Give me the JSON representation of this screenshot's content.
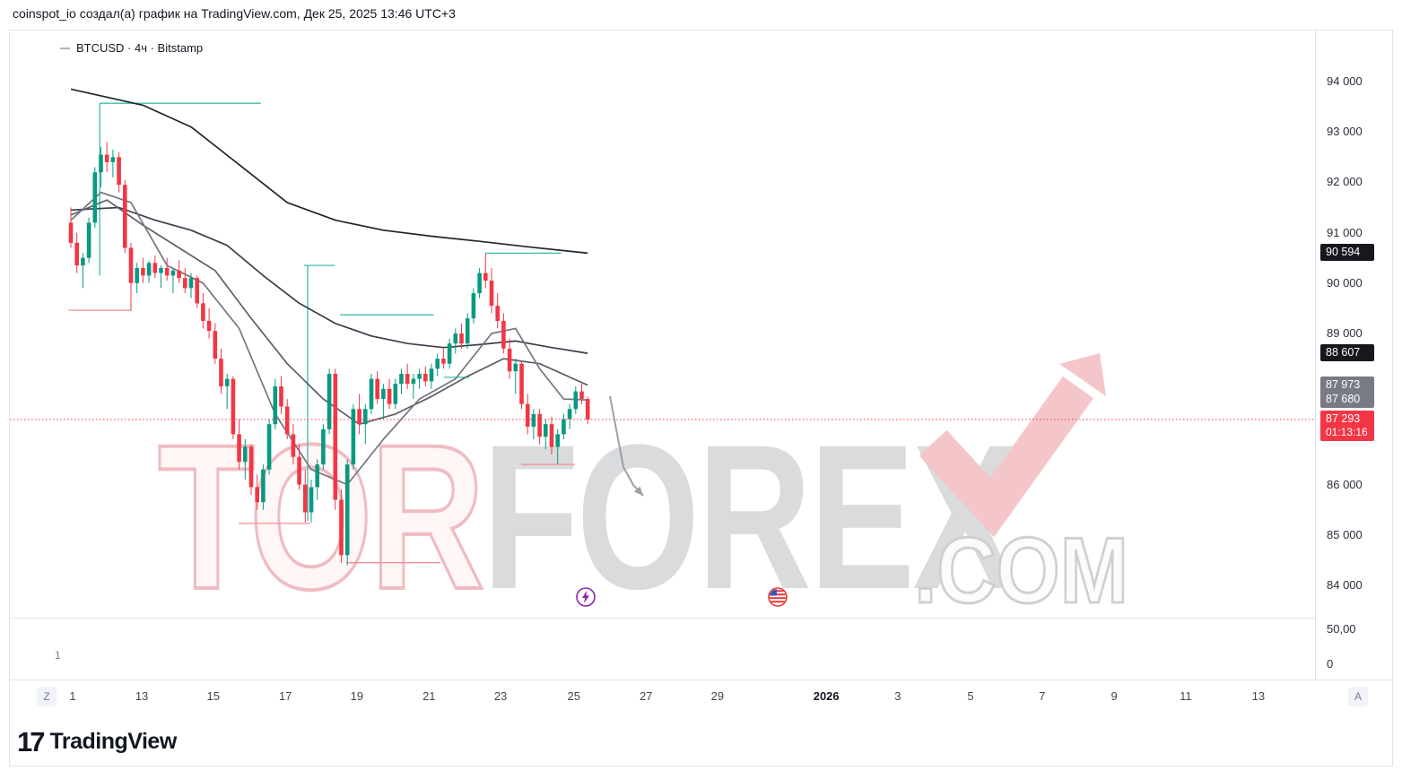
{
  "header": {
    "attribution": "coinspot_io создал(а) график на TradingView.com, Дек 25, 2025 13:46 UTC+3"
  },
  "legend": {
    "title": "BTCUSD · 4ч · Bitstamp"
  },
  "watermark": {
    "part1": "TOR",
    "part2": "FOREX",
    "part3": ".COM"
  },
  "logo": {
    "mark": "17",
    "text": "TradingView"
  },
  "time_axis": {
    "left_button": "Z",
    "right_button": "A"
  },
  "indicator_pane": {
    "labels": [
      "50,00",
      "0"
    ],
    "marker": "1"
  },
  "icons": {
    "lightning": "economic-event-lightning",
    "usflag": "us-economic-event-flag"
  },
  "chart_data": {
    "type": "candlestick",
    "symbol": "BTCUSD",
    "interval": "4ч",
    "exchange": "Bitstamp",
    "current_price": 87293,
    "countdown": "01:13:16",
    "colors": {
      "up": "#089981",
      "down": "#f23645",
      "level_teal": "#3bbcad",
      "level_pink": "#f58f97",
      "current_line": "#f23645",
      "arrow": "#9aa0a6"
    },
    "price_ticks": [
      {
        "text": "94 000",
        "price": 94000
      },
      {
        "text": "93 000",
        "price": 93000
      },
      {
        "text": "92 000",
        "price": 92000
      },
      {
        "text": "91 000",
        "price": 91000
      },
      {
        "text": "90 000",
        "price": 90000
      },
      {
        "text": "89 000",
        "price": 89000
      },
      {
        "text": "86 000",
        "price": 86000
      },
      {
        "text": "85 000",
        "price": 85000
      },
      {
        "text": "84 000",
        "price": 84000
      }
    ],
    "price_badges": [
      {
        "text": "90 594",
        "price": 90594,
        "style": "dark"
      },
      {
        "text": "88 607",
        "price": 88607,
        "style": "dark"
      },
      {
        "text": "87 973",
        "price": 87973,
        "style": "gray"
      },
      {
        "text": "87 680",
        "price": 87680,
        "style": "gray"
      },
      {
        "text": "87 293",
        "price": 87293,
        "style": "red",
        "countdown": "01:13:16"
      }
    ],
    "time_ticks": [
      {
        "label": "1",
        "i": 0.3
      },
      {
        "label": "13",
        "i": 11.8
      },
      {
        "label": "15",
        "i": 23.7
      },
      {
        "label": "17",
        "i": 35.7
      },
      {
        "label": "19",
        "i": 47.6
      },
      {
        "label": "21",
        "i": 59.6
      },
      {
        "label": "23",
        "i": 71.5
      },
      {
        "label": "25",
        "i": 83.7
      },
      {
        "label": "27",
        "i": 95.7
      },
      {
        "label": "29",
        "i": 107.6
      },
      {
        "label": "2026",
        "i": 125.7,
        "bold": true
      },
      {
        "label": "3",
        "i": 137.6
      },
      {
        "label": "5",
        "i": 149.7
      },
      {
        "label": "7",
        "i": 161.6
      },
      {
        "label": "9",
        "i": 173.6
      },
      {
        "label": "11",
        "i": 185.5
      },
      {
        "label": "13",
        "i": 197.6
      }
    ],
    "candles": [
      [
        91200,
        91500,
        90700,
        90800
      ],
      [
        90800,
        91000,
        90200,
        90350
      ],
      [
        90350,
        90600,
        89900,
        90500
      ],
      [
        90500,
        91300,
        90400,
        91200
      ],
      [
        91200,
        92300,
        91100,
        92200
      ],
      [
        92200,
        92700,
        91900,
        92550
      ],
      [
        92550,
        92800,
        92200,
        92400
      ],
      [
        92400,
        92650,
        92100,
        92500
      ],
      [
        92500,
        92600,
        91800,
        91950
      ],
      [
        91950,
        92050,
        90600,
        90700
      ],
      [
        90700,
        90800,
        89450,
        90000
      ],
      [
        90000,
        90400,
        89800,
        90300
      ],
      [
        90300,
        90500,
        90000,
        90150
      ],
      [
        90150,
        90450,
        90000,
        90400
      ],
      [
        90400,
        90550,
        90100,
        90200
      ],
      [
        90200,
        90350,
        89900,
        90300
      ],
      [
        90300,
        90500,
        90050,
        90150
      ],
      [
        90150,
        90300,
        89800,
        90250
      ],
      [
        90250,
        90450,
        90000,
        90100
      ],
      [
        90100,
        90300,
        89800,
        89900
      ],
      [
        89900,
        90200,
        89700,
        90100
      ],
      [
        90100,
        90150,
        89500,
        89600
      ],
      [
        89600,
        89800,
        89100,
        89250
      ],
      [
        89250,
        89500,
        88900,
        89050
      ],
      [
        89050,
        89200,
        88400,
        88500
      ],
      [
        88500,
        88700,
        87800,
        87950
      ],
      [
        87950,
        88200,
        87500,
        88100
      ],
      [
        88100,
        88150,
        86900,
        87000
      ],
      [
        87000,
        87300,
        86300,
        86450
      ],
      [
        86450,
        86900,
        86100,
        86750
      ],
      [
        86750,
        86800,
        85800,
        85950
      ],
      [
        85950,
        86200,
        85500,
        85650
      ],
      [
        85650,
        86400,
        85500,
        86300
      ],
      [
        86300,
        87300,
        86200,
        87200
      ],
      [
        87200,
        88100,
        87100,
        87950
      ],
      [
        87950,
        88150,
        87400,
        87550
      ],
      [
        87550,
        87700,
        86900,
        87000
      ],
      [
        87000,
        87200,
        86400,
        86550
      ],
      [
        86550,
        86800,
        85900,
        86000
      ],
      [
        86000,
        86300,
        85250,
        85450
      ],
      [
        85450,
        86100,
        85250,
        85950
      ],
      [
        85950,
        86500,
        85700,
        86400
      ],
      [
        86400,
        87200,
        86300,
        87100
      ],
      [
        87100,
        88300,
        87000,
        88200
      ],
      [
        88200,
        88300,
        85500,
        85700
      ],
      [
        85700,
        85900,
        84450,
        84600
      ],
      [
        84600,
        86500,
        84400,
        86400
      ],
      [
        86400,
        87600,
        86300,
        87500
      ],
      [
        87500,
        87800,
        87000,
        87200
      ],
      [
        87200,
        87600,
        86800,
        87500
      ],
      [
        87500,
        88200,
        87400,
        88100
      ],
      [
        88100,
        88250,
        87600,
        87700
      ],
      [
        87700,
        88000,
        87300,
        87900
      ],
      [
        87900,
        88100,
        87500,
        87600
      ],
      [
        87600,
        88100,
        87500,
        88000
      ],
      [
        88000,
        88300,
        87800,
        88200
      ],
      [
        88200,
        88400,
        87900,
        88000
      ],
      [
        88000,
        88200,
        87700,
        88100
      ],
      [
        88100,
        88300,
        87900,
        88200
      ],
      [
        88200,
        88350,
        87950,
        88050
      ],
      [
        88050,
        88400,
        87900,
        88300
      ],
      [
        88300,
        88600,
        88150,
        88500
      ],
      [
        88500,
        88700,
        88300,
        88400
      ],
      [
        88400,
        88900,
        88300,
        88800
      ],
      [
        88800,
        89100,
        88600,
        89000
      ],
      [
        89000,
        89200,
        88700,
        88800
      ],
      [
        88800,
        89400,
        88700,
        89300
      ],
      [
        89300,
        89900,
        89200,
        89800
      ],
      [
        89800,
        90300,
        89700,
        90200
      ],
      [
        90200,
        90594,
        89900,
        90050
      ],
      [
        90050,
        90300,
        89400,
        89550
      ],
      [
        89550,
        89800,
        89100,
        89250
      ],
      [
        89250,
        89400,
        88600,
        88700
      ],
      [
        88700,
        88900,
        88100,
        88250
      ],
      [
        88250,
        88500,
        87800,
        88400
      ],
      [
        88400,
        88450,
        87500,
        87600
      ],
      [
        87600,
        87800,
        87000,
        87150
      ],
      [
        87150,
        87500,
        86900,
        87400
      ],
      [
        87400,
        87500,
        86800,
        86950
      ],
      [
        86950,
        87300,
        86700,
        87200
      ],
      [
        87200,
        87350,
        86600,
        86750
      ],
      [
        86750,
        87100,
        86400,
        87000
      ],
      [
        87000,
        87400,
        86900,
        87300
      ],
      [
        87300,
        87600,
        87100,
        87500
      ],
      [
        87500,
        87950,
        87400,
        87850
      ],
      [
        87850,
        88000,
        87600,
        87700
      ],
      [
        87700,
        87750,
        87200,
        87293
      ]
    ],
    "moving_averages": [
      {
        "name": "ma-slow",
        "value": 90594,
        "color": "#20252e",
        "points": [
          [
            0,
            93850
          ],
          [
            12,
            93530
          ],
          [
            20,
            93100
          ],
          [
            28,
            92350
          ],
          [
            36,
            91600
          ],
          [
            44,
            91250
          ],
          [
            52,
            91050
          ],
          [
            60,
            90930
          ],
          [
            68,
            90830
          ],
          [
            76,
            90720
          ],
          [
            86,
            90594
          ]
        ]
      },
      {
        "name": "ma-mid-1",
        "value": 88607,
        "color": "#3a3f4a",
        "points": [
          [
            0,
            91450
          ],
          [
            8,
            91500
          ],
          [
            14,
            91250
          ],
          [
            20,
            91050
          ],
          [
            26,
            90750
          ],
          [
            32,
            90150
          ],
          [
            38,
            89600
          ],
          [
            44,
            89200
          ],
          [
            50,
            88950
          ],
          [
            56,
            88800
          ],
          [
            62,
            88720
          ],
          [
            68,
            88780
          ],
          [
            74,
            88850
          ],
          [
            80,
            88720
          ],
          [
            86,
            88607
          ]
        ]
      },
      {
        "name": "ma-mid-2",
        "value": 87973,
        "color": "#5a5e68",
        "points": [
          [
            0,
            91350
          ],
          [
            6,
            91650
          ],
          [
            12,
            91150
          ],
          [
            18,
            90700
          ],
          [
            24,
            90250
          ],
          [
            30,
            89300
          ],
          [
            36,
            88400
          ],
          [
            42,
            87700
          ],
          [
            48,
            87200
          ],
          [
            54,
            87400
          ],
          [
            60,
            87750
          ],
          [
            66,
            88150
          ],
          [
            72,
            88500
          ],
          [
            78,
            88400
          ],
          [
            86,
            87973
          ]
        ]
      },
      {
        "name": "ma-fast",
        "value": 87680,
        "color": "#73777f",
        "points": [
          [
            0,
            91250
          ],
          [
            5,
            91800
          ],
          [
            10,
            91600
          ],
          [
            16,
            90350
          ],
          [
            22,
            90000
          ],
          [
            28,
            89100
          ],
          [
            34,
            87400
          ],
          [
            40,
            86300
          ],
          [
            46,
            86000
          ],
          [
            52,
            86900
          ],
          [
            58,
            87700
          ],
          [
            64,
            88100
          ],
          [
            70,
            89000
          ],
          [
            74,
            89100
          ],
          [
            78,
            88300
          ],
          [
            82,
            87700
          ],
          [
            86,
            87680
          ]
        ]
      }
    ],
    "levels": [
      {
        "color": "teal",
        "price": 93570,
        "i1": 4.8,
        "i2": 31.6
      },
      {
        "color": "teal",
        "price": 90350,
        "i1": 38.8,
        "i2": 43.9
      },
      {
        "color": "teal",
        "price": 89370,
        "i1": 44.8,
        "i2": 60.4
      },
      {
        "color": "teal",
        "price": 88130,
        "i1": 62.1,
        "i2": 66.3
      },
      {
        "color": "teal",
        "price": 90594,
        "i1": 69.0,
        "i2": 81.6
      },
      {
        "color": "pink",
        "price": 89460,
        "i1": -0.4,
        "i2": 10.0
      },
      {
        "color": "pink",
        "price": 85230,
        "i1": 27.9,
        "i2": 39.9
      },
      {
        "color": "pink",
        "price": 84450,
        "i1": 45.8,
        "i2": 61.5
      },
      {
        "color": "pink",
        "price": 86400,
        "i1": 74.9,
        "i2": 83.9
      }
    ],
    "verticals": [
      {
        "color": "teal",
        "i": 4.8,
        "p1": 93570,
        "p2": 90150
      },
      {
        "color": "teal",
        "i": 39.4,
        "p1": 90350,
        "p2": 85280
      }
    ],
    "arrow_annotation": {
      "points": [
        [
          669,
          408
        ],
        [
          684,
          487
        ],
        [
          695,
          507
        ],
        [
          706,
          519
        ]
      ]
    }
  }
}
